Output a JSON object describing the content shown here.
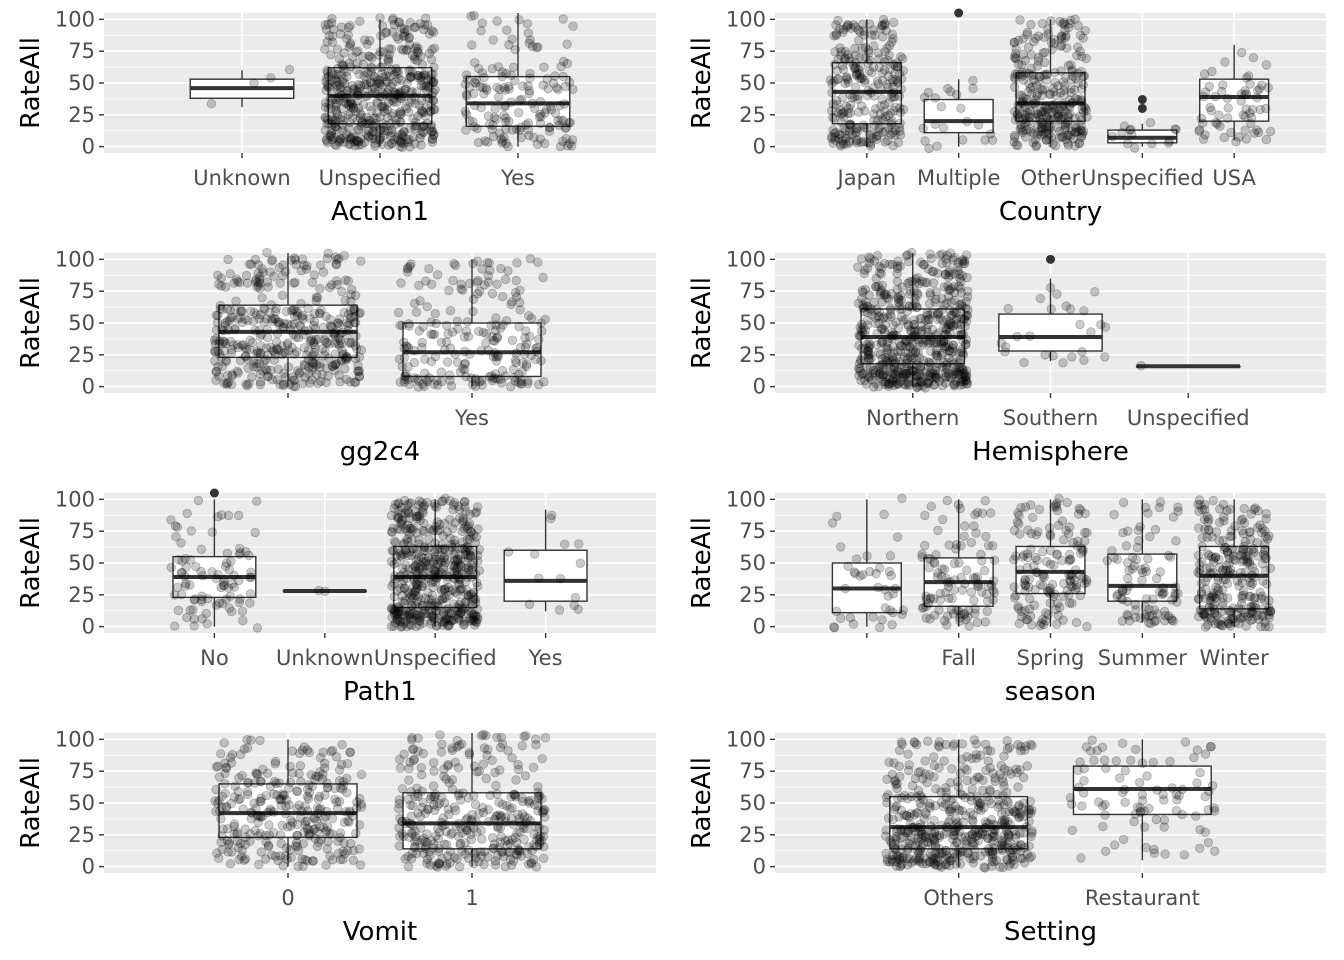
{
  "colors": {
    "panel_bg": "#EBEBEB",
    "grid_major": "#FFFFFF",
    "box_fill": "#FFFFFF",
    "box_stroke": "#333333",
    "median": "#333333",
    "point": "#000000",
    "tick_label": "#4D4D4D"
  },
  "chart_data": [
    {
      "type": "box",
      "xlabel": "Action1",
      "ylabel": "RateAll",
      "ylim": [
        -5,
        105
      ],
      "yticks": [
        0,
        25,
        50,
        75,
        100
      ],
      "grid": true,
      "categories": [
        "Unknown",
        "Unspecified",
        "Yes"
      ],
      "boxes": [
        {
          "q1": 38,
          "median": 46,
          "q3": 53,
          "whisker_low": 31,
          "whisker_high": 60,
          "outliers": [],
          "n": 4
        },
        {
          "q1": 18,
          "median": 40,
          "q3": 62,
          "whisker_low": 0,
          "whisker_high": 100,
          "outliers": [],
          "n": 500
        },
        {
          "q1": 16,
          "median": 34,
          "q3": 55,
          "whisker_low": 0,
          "whisker_high": 105,
          "outliers": [],
          "n": 160
        }
      ]
    },
    {
      "type": "box",
      "xlabel": "Country",
      "ylabel": "RateAll",
      "ylim": [
        -5,
        105
      ],
      "yticks": [
        0,
        25,
        50,
        75,
        100
      ],
      "grid": true,
      "categories": [
        "Japan",
        "Multiple",
        "Other",
        "Unspecified",
        "USA"
      ],
      "boxes": [
        {
          "q1": 18,
          "median": 43,
          "q3": 66,
          "whisker_low": 0,
          "whisker_high": 100,
          "outliers": [],
          "n": 260
        },
        {
          "q1": 11,
          "median": 20,
          "q3": 37,
          "whisker_low": 0,
          "whisker_high": 53,
          "outliers": [
            105
          ],
          "n": 22
        },
        {
          "q1": 20,
          "median": 34,
          "q3": 58,
          "whisker_low": 0,
          "whisker_high": 100,
          "outliers": [],
          "n": 300
        },
        {
          "q1": 3,
          "median": 7,
          "q3": 13,
          "whisker_low": 0,
          "whisker_high": 18,
          "outliers": [
            30,
            37
          ],
          "n": 14
        },
        {
          "q1": 20,
          "median": 39,
          "q3": 53,
          "whisker_low": 5,
          "whisker_high": 80,
          "outliers": [],
          "n": 60
        }
      ]
    },
    {
      "type": "box",
      "xlabel": "gg2c4",
      "ylabel": "RateAll",
      "ylim": [
        -5,
        105
      ],
      "yticks": [
        0,
        25,
        50,
        75,
        100
      ],
      "grid": true,
      "categories": [
        "",
        "Yes"
      ],
      "boxes": [
        {
          "q1": 23,
          "median": 43,
          "q3": 64,
          "whisker_low": 0,
          "whisker_high": 105,
          "outliers": [],
          "n": 420
        },
        {
          "q1": 8,
          "median": 27,
          "q3": 50,
          "whisker_low": 0,
          "whisker_high": 100,
          "outliers": [],
          "n": 220
        }
      ]
    },
    {
      "type": "box",
      "xlabel": "Hemisphere",
      "ylabel": "RateAll",
      "ylim": [
        -5,
        105
      ],
      "yticks": [
        0,
        25,
        50,
        75,
        100
      ],
      "grid": true,
      "categories": [
        "Northern",
        "Southern",
        "Unspecified"
      ],
      "boxes": [
        {
          "q1": 18,
          "median": 39,
          "q3": 61,
          "whisker_low": 0,
          "whisker_high": 105,
          "outliers": [],
          "n": 600
        },
        {
          "q1": 28,
          "median": 39,
          "q3": 57,
          "whisker_low": 20,
          "whisker_high": 85,
          "outliers": [
            100
          ],
          "n": 26
        },
        {
          "q1": 16,
          "median": 16,
          "q3": 16,
          "whisker_low": 16,
          "whisker_high": 16,
          "outliers": [],
          "n": 1
        }
      ]
    },
    {
      "type": "box",
      "xlabel": "Path1",
      "ylabel": "RateAll",
      "ylim": [
        -5,
        105
      ],
      "yticks": [
        0,
        25,
        50,
        75,
        100
      ],
      "grid": true,
      "categories": [
        "No",
        "Unknown",
        "Unspecified",
        "Yes"
      ],
      "boxes": [
        {
          "q1": 23,
          "median": 39,
          "q3": 55,
          "whisker_low": 0,
          "whisker_high": 100,
          "outliers": [
            105
          ],
          "n": 90
        },
        {
          "q1": 28,
          "median": 28,
          "q3": 28,
          "whisker_low": 28,
          "whisker_high": 28,
          "outliers": [],
          "n": 2
        },
        {
          "q1": 15,
          "median": 39,
          "q3": 63,
          "whisker_low": 0,
          "whisker_high": 100,
          "outliers": [],
          "n": 520
        },
        {
          "q1": 20,
          "median": 36,
          "q3": 60,
          "whisker_low": 12,
          "whisker_high": 92,
          "outliers": [],
          "n": 14
        }
      ]
    },
    {
      "type": "box",
      "xlabel": "season",
      "ylabel": "RateAll",
      "ylim": [
        -5,
        105
      ],
      "yticks": [
        0,
        25,
        50,
        75,
        100
      ],
      "grid": true,
      "categories": [
        "",
        "Fall",
        "Spring",
        "Summer",
        "Winter"
      ],
      "boxes": [
        {
          "q1": 11,
          "median": 30,
          "q3": 50,
          "whisker_low": 0,
          "whisker_high": 100,
          "outliers": [],
          "n": 40
        },
        {
          "q1": 16,
          "median": 35,
          "q3": 54,
          "whisker_low": 0,
          "whisker_high": 100,
          "outliers": [],
          "n": 110
        },
        {
          "q1": 26,
          "median": 43,
          "q3": 63,
          "whisker_low": 0,
          "whisker_high": 100,
          "outliers": [],
          "n": 150
        },
        {
          "q1": 20,
          "median": 32,
          "q3": 57,
          "whisker_low": 3,
          "whisker_high": 100,
          "outliers": [],
          "n": 90
        },
        {
          "q1": 14,
          "median": 40,
          "q3": 63,
          "whisker_low": 0,
          "whisker_high": 100,
          "outliers": [],
          "n": 270
        }
      ]
    },
    {
      "type": "box",
      "xlabel": "Vomit",
      "ylabel": "RateAll",
      "ylim": [
        -5,
        105
      ],
      "yticks": [
        0,
        25,
        50,
        75,
        100
      ],
      "grid": true,
      "categories": [
        "0",
        "1"
      ],
      "boxes": [
        {
          "q1": 23,
          "median": 42,
          "q3": 65,
          "whisker_low": 0,
          "whisker_high": 100,
          "outliers": [],
          "n": 300
        },
        {
          "q1": 14,
          "median": 34,
          "q3": 58,
          "whisker_low": 0,
          "whisker_high": 105,
          "outliers": [],
          "n": 350
        }
      ]
    },
    {
      "type": "box",
      "xlabel": "Setting",
      "ylabel": "RateAll",
      "ylim": [
        -5,
        105
      ],
      "yticks": [
        0,
        25,
        50,
        75,
        100
      ],
      "grid": true,
      "categories": [
        "Others",
        "Restaurant"
      ],
      "boxes": [
        {
          "q1": 14,
          "median": 31,
          "q3": 55,
          "whisker_low": 0,
          "whisker_high": 100,
          "outliers": [],
          "n": 500
        },
        {
          "q1": 41,
          "median": 61,
          "q3": 79,
          "whisker_low": 5,
          "whisker_high": 100,
          "outliers": [],
          "n": 90
        }
      ]
    }
  ]
}
